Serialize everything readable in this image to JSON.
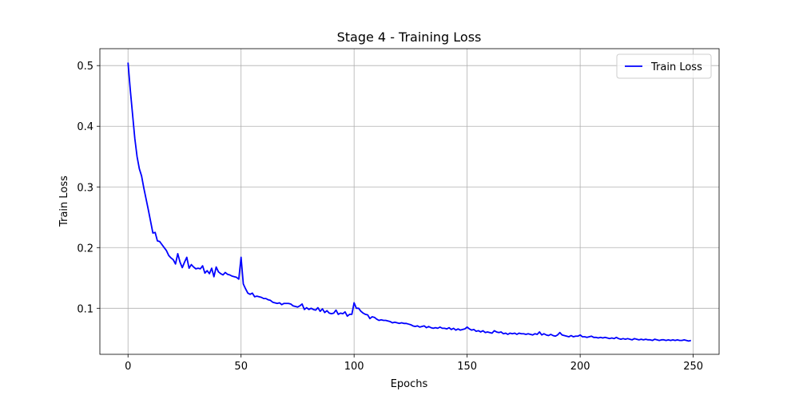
{
  "chart_data": {
    "type": "line",
    "title": "Stage 4 - Training Loss",
    "xlabel": "Epochs",
    "ylabel": "Train Loss",
    "x": [
      0,
      1,
      2,
      3,
      4,
      5,
      6,
      7,
      8,
      9,
      10,
      11,
      12,
      13,
      14,
      15,
      16,
      17,
      18,
      19,
      20,
      21,
      22,
      23,
      24,
      25,
      26,
      27,
      28,
      29,
      30,
      31,
      32,
      33,
      34,
      35,
      36,
      37,
      38,
      39,
      40,
      41,
      42,
      43,
      44,
      45,
      46,
      47,
      48,
      49,
      50,
      51,
      52,
      53,
      54,
      55,
      56,
      57,
      58,
      59,
      60,
      61,
      62,
      63,
      64,
      65,
      66,
      67,
      68,
      69,
      70,
      71,
      72,
      73,
      74,
      75,
      76,
      77,
      78,
      79,
      80,
      81,
      82,
      83,
      84,
      85,
      86,
      87,
      88,
      89,
      90,
      91,
      92,
      93,
      94,
      95,
      96,
      97,
      98,
      99,
      100,
      101,
      102,
      103,
      104,
      105,
      106,
      107,
      108,
      109,
      110,
      111,
      112,
      113,
      114,
      115,
      116,
      117,
      118,
      119,
      120,
      121,
      122,
      123,
      124,
      125,
      126,
      127,
      128,
      129,
      130,
      131,
      132,
      133,
      134,
      135,
      136,
      137,
      138,
      139,
      140,
      141,
      142,
      143,
      144,
      145,
      146,
      147,
      148,
      149,
      150,
      151,
      152,
      153,
      154,
      155,
      156,
      157,
      158,
      159,
      160,
      161,
      162,
      163,
      164,
      165,
      166,
      167,
      168,
      169,
      170,
      171,
      172,
      173,
      174,
      175,
      176,
      177,
      178,
      179,
      180,
      181,
      182,
      183,
      184,
      185,
      186,
      187,
      188,
      189,
      190,
      191,
      192,
      193,
      194,
      195,
      196,
      197,
      198,
      199,
      200,
      201,
      202,
      203,
      204,
      205,
      206,
      207,
      208,
      209,
      210,
      211,
      212,
      213,
      214,
      215,
      216,
      217,
      218,
      219,
      220,
      221,
      222,
      223,
      224,
      225,
      226,
      227,
      228,
      229,
      230,
      231,
      232,
      233,
      234,
      235,
      236,
      237,
      238,
      239,
      240,
      241,
      242,
      243,
      244,
      245,
      246,
      247,
      248,
      249
    ],
    "series": [
      {
        "name": "Train Loss",
        "color": "#0000ff",
        "values": [
          0.505,
          0.46,
          0.42,
          0.38,
          0.35,
          0.33,
          0.318,
          0.298,
          0.28,
          0.262,
          0.243,
          0.224,
          0.225,
          0.211,
          0.21,
          0.205,
          0.2,
          0.195,
          0.187,
          0.183,
          0.18,
          0.173,
          0.19,
          0.176,
          0.167,
          0.176,
          0.184,
          0.166,
          0.172,
          0.168,
          0.165,
          0.166,
          0.165,
          0.17,
          0.158,
          0.162,
          0.157,
          0.166,
          0.152,
          0.168,
          0.16,
          0.157,
          0.155,
          0.159,
          0.156,
          0.155,
          0.153,
          0.152,
          0.151,
          0.148,
          0.184,
          0.14,
          0.132,
          0.125,
          0.123,
          0.125,
          0.119,
          0.12,
          0.119,
          0.118,
          0.116,
          0.116,
          0.114,
          0.113,
          0.11,
          0.109,
          0.108,
          0.109,
          0.106,
          0.108,
          0.108,
          0.108,
          0.107,
          0.104,
          0.103,
          0.102,
          0.104,
          0.107,
          0.098,
          0.101,
          0.098,
          0.1,
          0.098,
          0.097,
          0.101,
          0.095,
          0.099,
          0.093,
          0.096,
          0.092,
          0.091,
          0.092,
          0.097,
          0.09,
          0.092,
          0.091,
          0.094,
          0.087,
          0.09,
          0.09,
          0.109,
          0.1,
          0.1,
          0.095,
          0.092,
          0.09,
          0.089,
          0.083,
          0.086,
          0.085,
          0.082,
          0.08,
          0.081,
          0.08,
          0.08,
          0.079,
          0.078,
          0.076,
          0.077,
          0.076,
          0.075,
          0.076,
          0.075,
          0.075,
          0.074,
          0.073,
          0.071,
          0.07,
          0.071,
          0.069,
          0.07,
          0.071,
          0.068,
          0.07,
          0.068,
          0.067,
          0.068,
          0.067,
          0.069,
          0.067,
          0.067,
          0.066,
          0.068,
          0.065,
          0.067,
          0.064,
          0.066,
          0.064,
          0.065,
          0.066,
          0.069,
          0.066,
          0.064,
          0.065,
          0.062,
          0.063,
          0.061,
          0.063,
          0.06,
          0.061,
          0.06,
          0.059,
          0.063,
          0.061,
          0.06,
          0.061,
          0.058,
          0.059,
          0.057,
          0.059,
          0.058,
          0.059,
          0.057,
          0.059,
          0.058,
          0.058,
          0.057,
          0.058,
          0.057,
          0.056,
          0.058,
          0.057,
          0.061,
          0.056,
          0.058,
          0.056,
          0.055,
          0.057,
          0.055,
          0.054,
          0.056,
          0.06,
          0.056,
          0.055,
          0.054,
          0.053,
          0.055,
          0.053,
          0.054,
          0.054,
          0.056,
          0.053,
          0.053,
          0.052,
          0.053,
          0.054,
          0.052,
          0.052,
          0.051,
          0.052,
          0.051,
          0.052,
          0.051,
          0.05,
          0.051,
          0.05,
          0.052,
          0.05,
          0.049,
          0.05,
          0.049,
          0.05,
          0.049,
          0.048,
          0.05,
          0.049,
          0.048,
          0.049,
          0.048,
          0.049,
          0.048,
          0.048,
          0.047,
          0.049,
          0.048,
          0.047,
          0.048,
          0.048,
          0.047,
          0.048,
          0.047,
          0.048,
          0.047,
          0.048,
          0.047,
          0.047,
          0.048,
          0.047,
          0.046,
          0.047
        ]
      }
    ],
    "xlim": [
      -12.45,
      261.45
    ],
    "xticks": [
      0,
      50,
      100,
      150,
      200,
      250
    ],
    "ylim": [
      0.0241,
      0.5279
    ],
    "yticks": [
      0.1,
      0.2,
      0.3,
      0.4,
      0.5
    ],
    "grid": true,
    "legend": "upper right"
  }
}
